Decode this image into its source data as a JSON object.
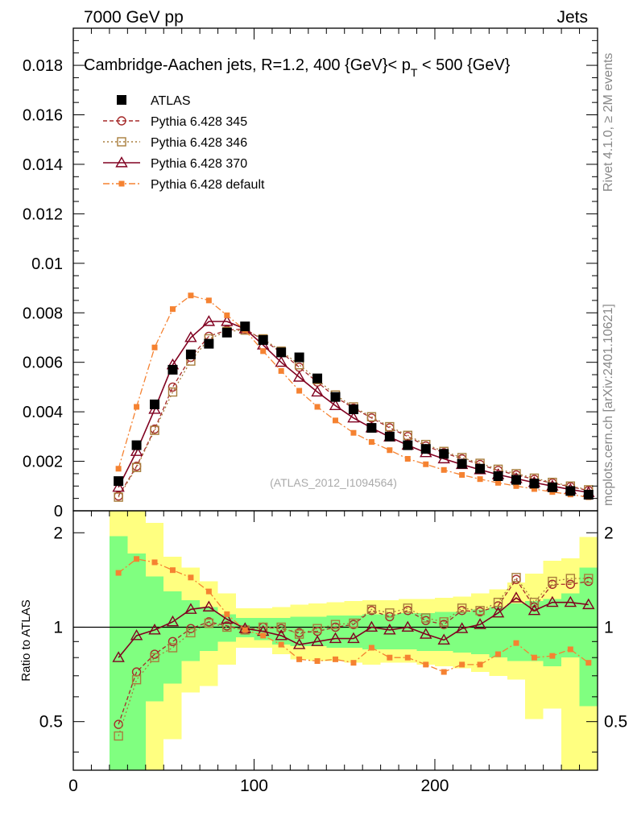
{
  "header": {
    "left": "7000 GeV pp",
    "right": "Jets"
  },
  "side_labels": {
    "rivet": "Rivet 4.1.0, ≥ 2M events",
    "mcplots": "mcplots.cern.ch [arXiv:2401.10621]"
  },
  "chart_data": [
    {
      "type": "line",
      "panel": "main",
      "title": "Cambridge-Aachen jets, R=1.2, 400 {GeV}< p",
      "title_sub": "T",
      "title_end": " < 500 {GeV}",
      "watermark": "(ATLAS_2012_I1094564)",
      "xlim": [
        0,
        290
      ],
      "ylim": [
        0,
        0.0195
      ],
      "yticks": [
        0,
        0.002,
        0.004,
        0.006,
        0.008,
        0.01,
        0.012,
        0.014,
        0.016,
        0.018
      ],
      "ytick_labels": [
        "0",
        "0.002",
        "0.004",
        "0.006",
        "0.008",
        "0.01",
        "0.012",
        "0.014",
        "0.016",
        "0.018"
      ],
      "x": [
        25,
        35,
        45,
        55,
        65,
        75,
        85,
        95,
        105,
        115,
        125,
        135,
        145,
        155,
        165,
        175,
        185,
        195,
        205,
        215,
        225,
        235,
        245,
        255,
        265,
        275,
        285
      ],
      "series": [
        {
          "name": "ATLAS",
          "color": "#000000",
          "style": "data",
          "values": [
            0.0012,
            0.00265,
            0.0043,
            0.0057,
            0.00632,
            0.00675,
            0.0072,
            0.00745,
            0.0069,
            0.0064,
            0.0062,
            0.00535,
            0.0046,
            0.0041,
            0.00335,
            0.003,
            0.00265,
            0.0025,
            0.0023,
            0.0019,
            0.0017,
            0.0014,
            0.00125,
            0.0011,
            0.00095,
            0.0008,
            0.00065
          ]
        },
        {
          "name": "Pythia 6.428 345",
          "color": "#a52a2a",
          "style": "dashed-circle",
          "values": [
            0.0006,
            0.0018,
            0.0033,
            0.005,
            0.0062,
            0.00705,
            0.0073,
            0.00735,
            0.0069,
            0.0064,
            0.0058,
            0.0052,
            0.0046,
            0.00415,
            0.00375,
            0.00335,
            0.003,
            0.00262,
            0.00235,
            0.0021,
            0.00187,
            0.00163,
            0.00145,
            0.00127,
            0.00112,
            0.00097,
            0.00082
          ]
        },
        {
          "name": "Pythia 6.428 346",
          "color": "#a87d3c",
          "style": "dotted-square",
          "values": [
            0.00055,
            0.00175,
            0.00325,
            0.0048,
            0.00605,
            0.00695,
            0.00725,
            0.0073,
            0.00695,
            0.00645,
            0.0059,
            0.0053,
            0.00468,
            0.0042,
            0.0038,
            0.0034,
            0.00305,
            0.00268,
            0.0024,
            0.00215,
            0.00192,
            0.00168,
            0.0015,
            0.00132,
            0.00115,
            0.001,
            0.00085
          ]
        },
        {
          "name": "Pythia 6.428 370",
          "color": "#800020",
          "style": "solid-triangle",
          "values": [
            0.00095,
            0.0024,
            0.0041,
            0.0059,
            0.007,
            0.00765,
            0.00765,
            0.00735,
            0.0067,
            0.006,
            0.0054,
            0.0048,
            0.00425,
            0.00375,
            0.00335,
            0.00298,
            0.00265,
            0.00235,
            0.0021,
            0.00187,
            0.00166,
            0.00146,
            0.0013,
            0.00114,
            0.001,
            0.00086,
            0.00074
          ]
        },
        {
          "name": "Pythia 6.428 default",
          "color": "#f58231",
          "style": "dashdot-filled-square",
          "values": [
            0.0017,
            0.0042,
            0.0066,
            0.00815,
            0.0087,
            0.0085,
            0.0079,
            0.0073,
            0.00645,
            0.00565,
            0.00485,
            0.0042,
            0.00365,
            0.00315,
            0.00278,
            0.00245,
            0.0021,
            0.00188,
            0.00165,
            0.00145,
            0.00128,
            0.00113,
            0.001,
            0.00088,
            0.00076,
            0.00066,
            0.00055
          ]
        }
      ]
    },
    {
      "type": "line",
      "panel": "ratio",
      "ylabel": "Ratio to ATLAS",
      "xlim": [
        0,
        290
      ],
      "ylim": [
        0.35,
        2.35
      ],
      "xticks": [
        0,
        100,
        200
      ],
      "xtick_labels": [
        "0",
        "100",
        "200"
      ],
      "yticks": [
        0.5,
        1,
        2
      ],
      "ytick_labels": [
        "0.5",
        "1",
        "2"
      ],
      "reference_line": 1,
      "band_edges": [
        20,
        30,
        40,
        50,
        60,
        70,
        80,
        90,
        100,
        110,
        120,
        130,
        140,
        150,
        160,
        170,
        180,
        190,
        200,
        210,
        220,
        230,
        240,
        250,
        260,
        270,
        280,
        290
      ],
      "band_inner": {
        "color": "#80ff80",
        "lo": [
          0.35,
          0.35,
          0.58,
          0.66,
          0.78,
          0.84,
          0.9,
          0.93,
          0.91,
          0.88,
          0.87,
          0.87,
          0.86,
          0.86,
          0.85,
          0.85,
          0.85,
          0.84,
          0.84,
          0.83,
          0.82,
          0.8,
          0.78,
          0.78,
          0.75,
          0.8,
          0.56
        ],
        "hi": [
          1.95,
          1.72,
          1.45,
          1.3,
          1.22,
          1.16,
          1.1,
          1.07,
          1.07,
          1.07,
          1.08,
          1.08,
          1.09,
          1.09,
          1.1,
          1.1,
          1.11,
          1.11,
          1.12,
          1.12,
          1.14,
          1.16,
          1.19,
          1.21,
          1.23,
          1.28,
          1.55
        ]
      },
      "band_outer": {
        "color": "#ffff80",
        "lo": [
          0.35,
          0.35,
          0.35,
          0.44,
          0.62,
          0.65,
          0.76,
          0.86,
          0.86,
          0.82,
          0.79,
          0.78,
          0.78,
          0.77,
          0.76,
          0.77,
          0.77,
          0.76,
          0.75,
          0.74,
          0.72,
          0.7,
          0.68,
          0.51,
          0.55,
          0.35,
          0.35
        ],
        "hi": [
          2.35,
          2.35,
          2.15,
          1.68,
          1.55,
          1.4,
          1.28,
          1.15,
          1.15,
          1.16,
          1.18,
          1.19,
          1.2,
          1.21,
          1.22,
          1.22,
          1.23,
          1.23,
          1.24,
          1.25,
          1.28,
          1.32,
          1.39,
          1.48,
          1.63,
          1.66,
          1.94
        ]
      },
      "x": [
        25,
        35,
        45,
        55,
        65,
        75,
        85,
        95,
        105,
        115,
        125,
        135,
        145,
        155,
        165,
        175,
        185,
        195,
        205,
        215,
        225,
        235,
        245,
        255,
        265,
        275,
        285
      ],
      "series": [
        {
          "name": "Pythia 6.428 345",
          "color": "#a52a2a",
          "style": "dashed-circle",
          "values": [
            0.49,
            0.72,
            0.82,
            0.9,
            0.99,
            1.04,
            1.01,
            0.98,
            1.0,
            0.99,
            0.96,
            0.97,
            1.0,
            1.02,
            1.13,
            1.08,
            1.13,
            1.05,
            1.02,
            1.13,
            1.12,
            1.17,
            1.42,
            1.16,
            1.37,
            1.37,
            1.4
          ]
        },
        {
          "name": "Pythia 6.428 346",
          "color": "#a87d3c",
          "style": "dotted-square",
          "values": [
            0.45,
            0.68,
            0.8,
            0.86,
            0.96,
            1.03,
            1.0,
            0.98,
            1.0,
            1.0,
            0.95,
            0.99,
            1.02,
            1.03,
            1.14,
            1.11,
            1.15,
            1.07,
            1.04,
            1.15,
            1.13,
            1.2,
            1.44,
            1.2,
            1.4,
            1.43,
            1.43
          ]
        },
        {
          "name": "Pythia 6.428 370",
          "color": "#800020",
          "style": "solid-triangle",
          "values": [
            0.8,
            0.94,
            0.98,
            1.04,
            1.14,
            1.16,
            1.06,
            0.99,
            0.97,
            0.94,
            0.88,
            0.9,
            0.92,
            0.92,
            1.0,
            0.98,
            1.0,
            0.95,
            0.91,
            0.99,
            1.02,
            1.11,
            1.24,
            1.13,
            1.2,
            1.2,
            1.18
          ]
        },
        {
          "name": "Pythia 6.428 default",
          "color": "#f58231",
          "style": "dashdot-filled-square",
          "values": [
            1.49,
            1.65,
            1.61,
            1.52,
            1.44,
            1.3,
            1.1,
            0.98,
            0.94,
            0.88,
            0.79,
            0.78,
            0.79,
            0.77,
            0.86,
            0.8,
            0.8,
            0.76,
            0.72,
            0.76,
            0.76,
            0.82,
            0.89,
            0.8,
            0.81,
            0.85,
            0.77
          ]
        }
      ]
    }
  ]
}
